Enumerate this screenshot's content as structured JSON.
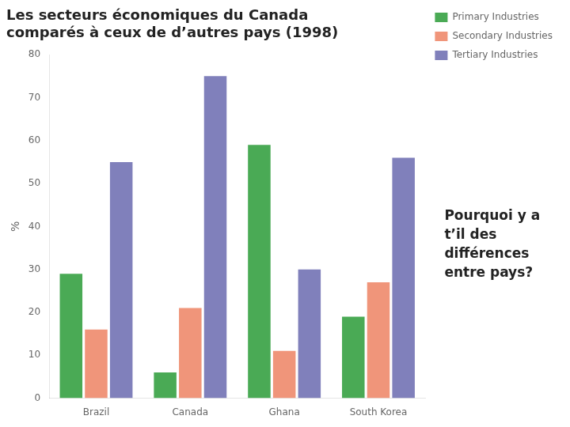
{
  "chart_data": {
    "type": "bar",
    "title": "Les secteurs économiques du Canada\ncomparés à ceux de d’autres pays (1998)",
    "categories": [
      "Brazil",
      "Canada",
      "Ghana",
      "South Korea"
    ],
    "series": [
      {
        "name": "Primary Industries",
        "color": "#4aaa55",
        "values": [
          29,
          6,
          59,
          19
        ]
      },
      {
        "name": "Secondary Industries",
        "color": "#f0957a",
        "values": [
          16,
          21,
          11,
          27
        ]
      },
      {
        "name": "Tertiary Industries",
        "color": "#8080bb",
        "values": [
          55,
          75,
          30,
          56
        ]
      }
    ],
    "ylabel": "%",
    "ylim": [
      0,
      80
    ],
    "yticks": [
      0,
      10,
      20,
      30,
      40,
      50,
      60,
      70,
      80
    ],
    "grid": false,
    "legend": "upper right",
    "annotation": "Pourquoi y a\nt’il des\ndifférences\nentre pays?"
  }
}
